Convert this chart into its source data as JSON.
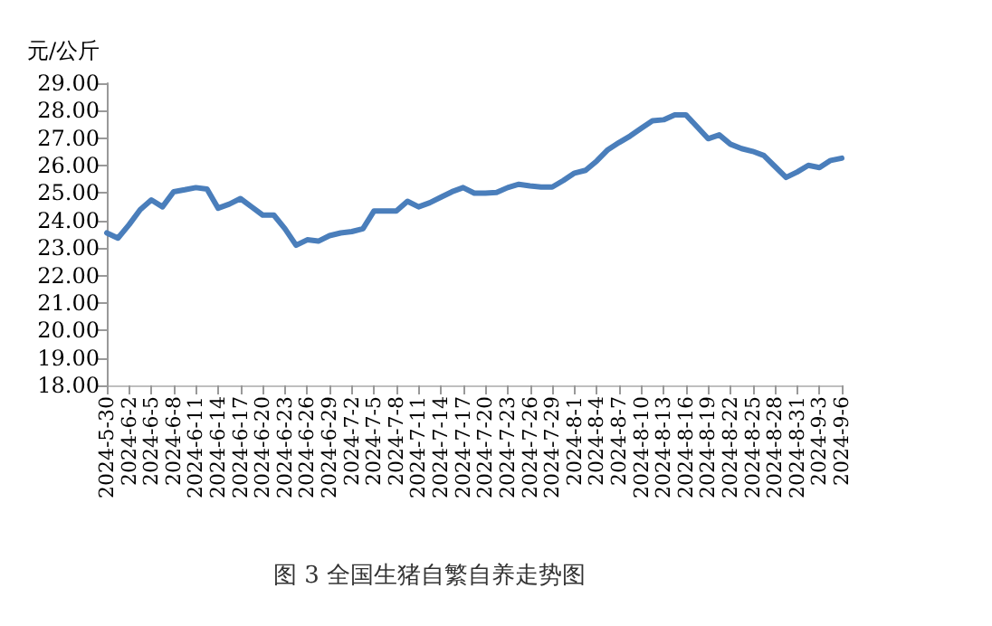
{
  "chart_data": {
    "type": "line",
    "title": "图 3 全国生猪自繁自养走势图",
    "ylabel": "元/公斤",
    "categories": [
      "2024-5-30",
      null,
      "2024-6-2",
      null,
      "2024-6-5",
      null,
      "2024-6-8",
      null,
      "2024-6-11",
      null,
      "2024-6-14",
      null,
      "2024-6-17",
      null,
      "2024-6-20",
      null,
      "2024-6-23",
      null,
      "2024-6-26",
      null,
      "2024-6-29",
      null,
      "2024-7-2",
      null,
      "2024-7-5",
      null,
      "2024-7-8",
      null,
      "2024-7-11",
      null,
      "2024-7-14",
      null,
      "2024-7-17",
      null,
      "2024-7-20",
      null,
      "2024-7-23",
      null,
      "2024-7-26",
      null,
      "2024-7-29",
      null,
      "2024-8-1",
      null,
      "2024-8-4",
      null,
      "2024-8-7",
      null,
      "2024-8-10",
      null,
      "2024-8-13",
      null,
      "2024-8-16",
      null,
      "2024-8-19",
      null,
      "2024-8-22",
      null,
      "2024-8-25",
      null,
      "2024-8-28",
      null,
      "2024-8-31",
      null,
      "2024-9-3",
      null,
      "2024-9-6"
    ],
    "series": [
      {
        "color": "#4a7ebb",
        "values": [
          23.55,
          23.36,
          23.85,
          24.4,
          24.75,
          24.5,
          25.05,
          25.12,
          25.2,
          25.15,
          24.45,
          24.6,
          24.8,
          24.5,
          24.2,
          24.2,
          23.7,
          23.1,
          23.3,
          23.25,
          23.45,
          23.55,
          23.6,
          23.7,
          24.35,
          24.35,
          24.35,
          24.7,
          24.5,
          24.65,
          24.85,
          25.05,
          25.2,
          25.0,
          25.0,
          25.02,
          25.2,
          25.32,
          25.26,
          25.22,
          25.22,
          25.46,
          25.73,
          25.83,
          26.17,
          26.58,
          26.84,
          27.08,
          27.36,
          27.63,
          27.67,
          27.85,
          27.85,
          27.42,
          26.98,
          27.12,
          26.78,
          26.62,
          26.52,
          26.37,
          25.97,
          25.57,
          25.77,
          26.01,
          25.93,
          26.19,
          26.27
        ]
      }
    ],
    "ylim": [
      18,
      29
    ],
    "yticks": [
      {
        "value": 18,
        "label": "18.00"
      },
      {
        "value": 19,
        "label": "19.00"
      },
      {
        "value": 20,
        "label": "20.00"
      },
      {
        "value": 21,
        "label": "21.00"
      },
      {
        "value": 22,
        "label": "22.00"
      },
      {
        "value": 23,
        "label": "23.00"
      },
      {
        "value": 24,
        "label": "24.00"
      },
      {
        "value": 25,
        "label": "25.00"
      },
      {
        "value": 26,
        "label": "26.00"
      },
      {
        "value": 27,
        "label": "27.00"
      },
      {
        "value": 28,
        "label": "28.00"
      },
      {
        "value": 29,
        "label": "29.00"
      }
    ],
    "grid": false,
    "marker": "none",
    "line_style": "solid"
  }
}
